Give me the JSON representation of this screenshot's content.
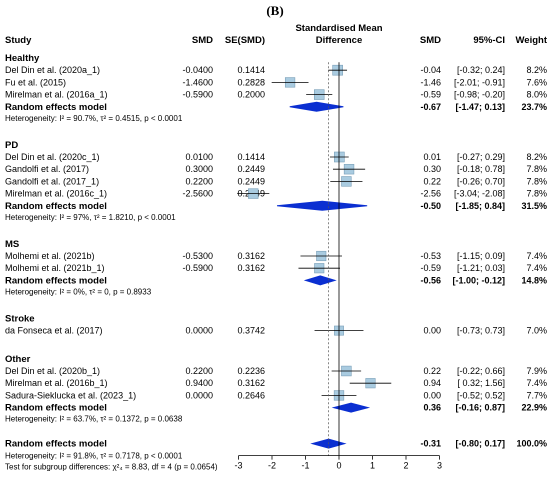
{
  "panel_label": "(B)",
  "chart_data": {
    "type": "forest",
    "headers": {
      "study": "Study",
      "smd": "SMD",
      "se": "SE(SMD)",
      "plot_title_1": "Standardised Mean",
      "plot_title_2": "Difference",
      "smd_right": "SMD",
      "ci": "95%-CI",
      "weight": "Weight"
    },
    "xlim": [
      -3,
      3
    ],
    "ticks": [
      "-3",
      "-2",
      "-1",
      "0",
      "1",
      "2",
      "3"
    ],
    "subgroups": [
      {
        "name": "Healthy",
        "studies": [
          {
            "study": "Del Din et al. (2020a_1)",
            "smd": "-0.0400",
            "se": "0.1414",
            "smd_r": "-0.04",
            "ci": "[-0.32; 0.24]",
            "weight": "8.2%",
            "est": -0.04,
            "lo": -0.32,
            "hi": 0.24,
            "w": 8.2
          },
          {
            "study": "Fu et al. (2015)",
            "smd": "-1.4600",
            "se": "0.2828",
            "smd_r": "-1.46",
            "ci": "[-2.01; -0.91]",
            "weight": "7.6%",
            "est": -1.46,
            "lo": -2.01,
            "hi": -0.91,
            "w": 7.6
          },
          {
            "study": "Mirelman et al. (2016a_1)",
            "smd": "-0.5900",
            "se": "0.2000",
            "smd_r": "-0.59",
            "ci": "[-0.98; -0.20]",
            "weight": "8.0%",
            "est": -0.59,
            "lo": -0.98,
            "hi": -0.2,
            "w": 8.0
          }
        ],
        "model": {
          "label": "Random effects model",
          "smd_r": "-0.67",
          "ci": "[-1.47; 0.13]",
          "weight": "23.7%",
          "est": -0.67,
          "lo": -1.47,
          "hi": 0.13
        },
        "heterogeneity": "Heterogeneity: I² = 90.7%, τ² = 0.4515, p < 0.0001"
      },
      {
        "name": "PD",
        "studies": [
          {
            "study": "Del Din et al. (2020c_1)",
            "smd": "0.0100",
            "se": "0.1414",
            "smd_r": "0.01",
            "ci": "[-0.27; 0.29]",
            "weight": "8.2%",
            "est": 0.01,
            "lo": -0.27,
            "hi": 0.29,
            "w": 8.2
          },
          {
            "study": "Gandolfi et al. (2017)",
            "smd": "0.3000",
            "se": "0.2449",
            "smd_r": "0.30",
            "ci": "[-0.18; 0.78]",
            "weight": "7.8%",
            "est": 0.3,
            "lo": -0.18,
            "hi": 0.78,
            "w": 7.8
          },
          {
            "study": "Gandolfi et al. (2017_1)",
            "smd": "0.2200",
            "se": "0.2449",
            "smd_r": "0.22",
            "ci": "[-0.26; 0.70]",
            "weight": "7.8%",
            "est": 0.22,
            "lo": -0.26,
            "hi": 0.7,
            "w": 7.8
          },
          {
            "study": "Mirelman et al. (2016c_1)",
            "smd": "-2.5600",
            "se": "0.2449",
            "smd_r": "-2.56",
            "ci": "[-3.04; -2.08]",
            "weight": "7.8%",
            "est": -2.56,
            "lo": -3.04,
            "hi": -2.08,
            "w": 7.8
          }
        ],
        "model": {
          "label": "Random effects model",
          "smd_r": "-0.50",
          "ci": "[-1.85; 0.84]",
          "weight": "31.5%",
          "est": -0.5,
          "lo": -1.85,
          "hi": 0.84
        },
        "heterogeneity": "Heterogeneity: I² = 97%, τ² = 1.8210, p < 0.0001"
      },
      {
        "name": "MS",
        "studies": [
          {
            "study": "Molhemi et al. (2021b)",
            "smd": "-0.5300",
            "se": "0.3162",
            "smd_r": "-0.53",
            "ci": "[-1.15; 0.09]",
            "weight": "7.4%",
            "est": -0.53,
            "lo": -1.15,
            "hi": 0.09,
            "w": 7.4
          },
          {
            "study": "Molhemi et al. (2021b_1)",
            "smd": "-0.5900",
            "se": "0.3162",
            "smd_r": "-0.59",
            "ci": "[-1.21; 0.03]",
            "weight": "7.4%",
            "est": -0.59,
            "lo": -1.21,
            "hi": 0.03,
            "w": 7.4
          }
        ],
        "model": {
          "label": "Random effects model",
          "smd_r": "-0.56",
          "ci": "[-1.00; -0.12]",
          "weight": "14.8%",
          "est": -0.56,
          "lo": -1.0,
          "hi": -0.12
        },
        "heterogeneity": "Heterogeneity: I² = 0%, τ² = 0, p = 0.8933"
      },
      {
        "name": "Stroke",
        "studies": [
          {
            "study": "da Fonseca et al. (2017)",
            "smd": "0.0000",
            "se": "0.3742",
            "smd_r": "0.00",
            "ci": "[-0.73; 0.73]",
            "weight": "7.0%",
            "est": 0.0,
            "lo": -0.73,
            "hi": 0.73,
            "w": 7.0
          }
        ],
        "model": null,
        "heterogeneity": ""
      },
      {
        "name": "Other",
        "studies": [
          {
            "study": "Del Din et al. (2020b_1)",
            "smd": "0.2200",
            "se": "0.2236",
            "smd_r": "0.22",
            "ci": "[-0.22; 0.66]",
            "weight": "7.9%",
            "est": 0.22,
            "lo": -0.22,
            "hi": 0.66,
            "w": 7.9
          },
          {
            "study": "Mirelman et al. (2016b_1)",
            "smd": "0.9400",
            "se": "0.3162",
            "smd_r": "0.94",
            "ci": "[ 0.32; 1.56]",
            "weight": "7.4%",
            "est": 0.94,
            "lo": 0.32,
            "hi": 1.56,
            "w": 7.4
          },
          {
            "study": "Sadura-Sieklucka et al. (2023_1)",
            "smd": "0.0000",
            "se": "0.2646",
            "smd_r": "0.00",
            "ci": "[-0.52; 0.52]",
            "weight": "7.7%",
            "est": 0.0,
            "lo": -0.52,
            "hi": 0.52,
            "w": 7.7
          }
        ],
        "model": {
          "label": "Random effects model",
          "smd_r": "0.36",
          "ci": "[-0.16; 0.87]",
          "weight": "22.9%",
          "est": 0.36,
          "lo": -0.16,
          "hi": 0.87
        },
        "heterogeneity": "Heterogeneity: I² = 63.7%, τ² = 0.1372, p = 0.0638"
      }
    ],
    "overall": {
      "label": "Random effects model",
      "smd_r": "-0.31",
      "ci": "[-0.80; 0.17]",
      "weight": "100.0%",
      "est": -0.31,
      "lo": -0.8,
      "hi": 0.17,
      "heterogeneity": "Heterogeneity: I² = 91.8%, τ² = 0.7178, p < 0.0001",
      "subgroup_test": "Test for subgroup differences: χ²₄ = 8.83, df = 4 (p = 0.0654)"
    },
    "colors": {
      "box": "#a9cbe0",
      "box_stroke": "#7a9fb8",
      "diamond": "#0b2fd1",
      "line": "#000000"
    }
  }
}
